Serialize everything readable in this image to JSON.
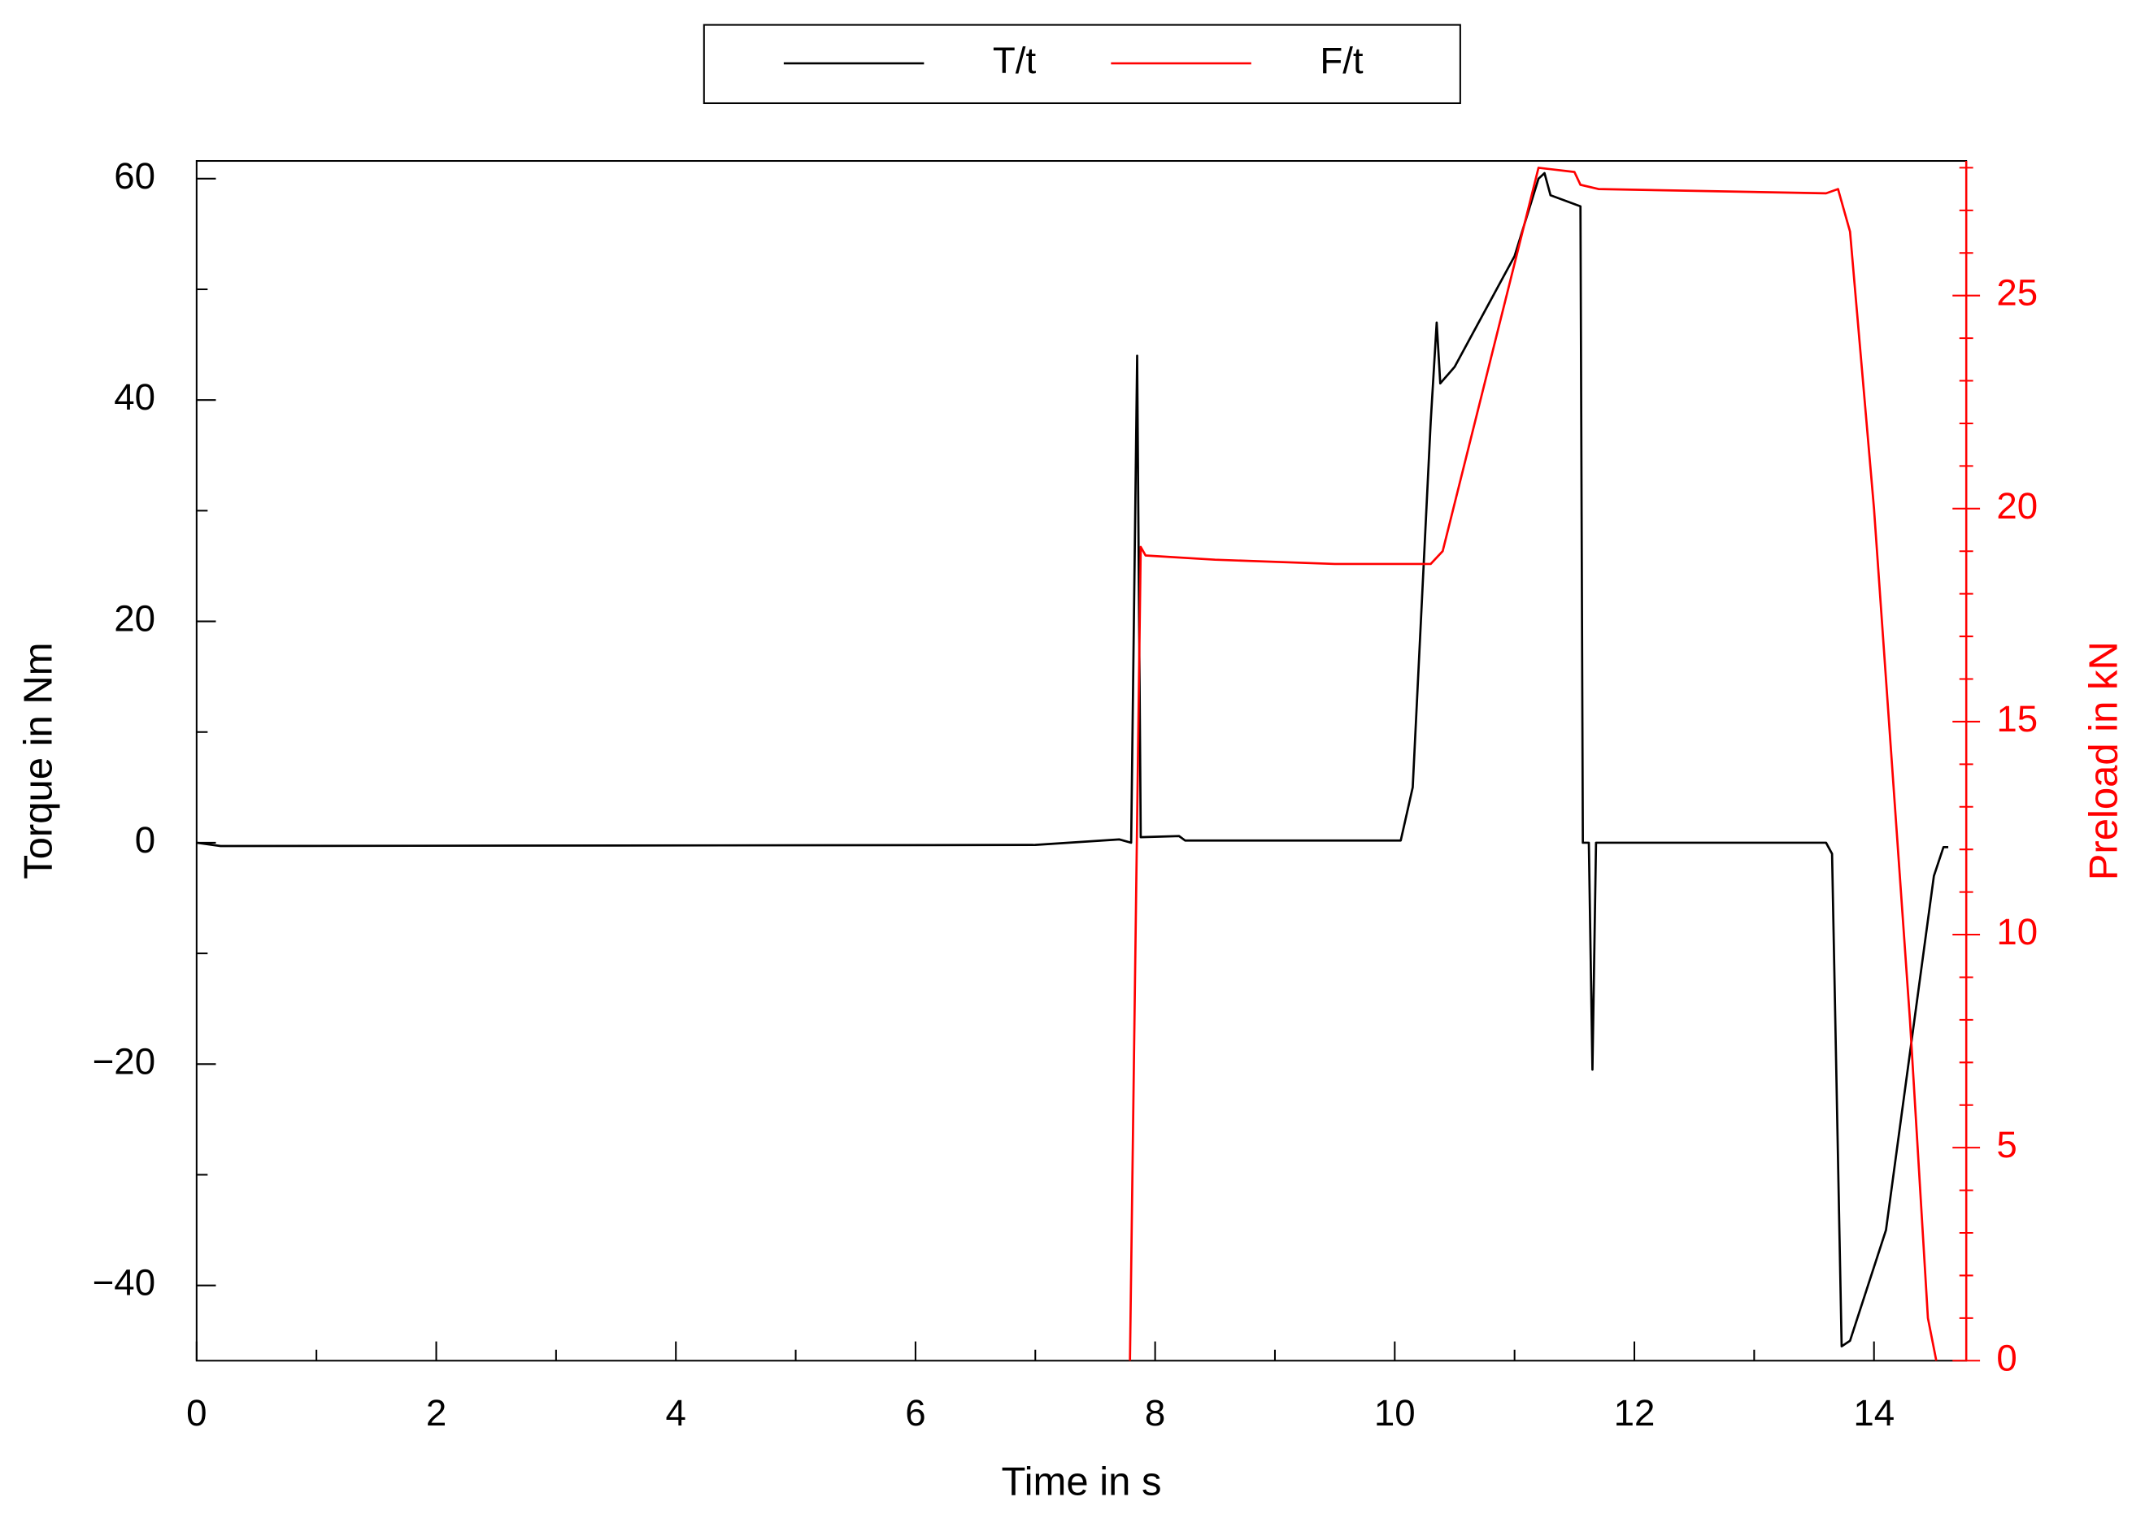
{
  "chart_data": {
    "type": "line",
    "xlabel": "Time in s",
    "ylabel": "Torque in Nm",
    "y2label": "Preload in kN",
    "legend": "top",
    "xlim": [
      0,
      14.77
    ],
    "ylim": [
      -46.8,
      61.6
    ],
    "y2lim": [
      0,
      28.16
    ],
    "xticks": [
      0,
      2,
      4,
      6,
      8,
      10,
      12,
      14
    ],
    "xminorticks": [
      1,
      3,
      5,
      7,
      9,
      11,
      13
    ],
    "yticks": [
      {
        "value": -40,
        "label": "−40"
      },
      {
        "value": -20,
        "label": "−20"
      },
      0,
      20,
      40,
      60
    ],
    "yminorticks": [
      -30,
      -10,
      10,
      30,
      50
    ],
    "y2ticks": [
      0,
      5,
      10,
      15,
      20,
      25
    ],
    "y2minorticks": [
      1,
      2,
      3,
      4,
      6,
      7,
      8,
      9,
      11,
      12,
      13,
      14,
      16,
      17,
      18,
      19,
      21,
      22,
      23,
      24,
      26,
      27,
      28
    ],
    "series": [
      {
        "name": "T/t",
        "color": "#000000",
        "x": [
          0,
          0.2,
          7.0,
          7.7,
          7.8,
          7.85,
          7.88,
          8.2,
          8.25,
          10.05,
          10.15,
          10.3,
          10.35,
          10.38,
          10.5,
          11.0,
          11.2,
          11.25,
          11.3,
          11.55,
          11.57,
          11.62,
          11.65,
          11.68,
          13.6,
          13.65,
          13.73,
          13.8,
          14.1,
          14.5,
          14.58,
          14.62
        ],
        "values": [
          0,
          -0.3,
          -0.2,
          0.3,
          0,
          44,
          0.5,
          0.6,
          0.2,
          0.2,
          5,
          38,
          47,
          41.5,
          43,
          53,
          60,
          60.5,
          58.5,
          57.5,
          0,
          0,
          -20.5,
          0,
          0,
          -1,
          -45.5,
          -45,
          -35,
          -3,
          -0.4,
          -0.4
        ]
      },
      {
        "name": "F/t",
        "color": "#ff0000",
        "axis": "y2",
        "x": [
          7.79,
          7.88,
          7.92,
          8.5,
          9.5,
          10.3,
          10.4,
          11.2,
          11.5,
          11.55,
          11.7,
          13.6,
          13.7,
          13.8,
          14.0,
          14.3,
          14.45,
          14.52
        ],
        "values": [
          0,
          19.1,
          18.9,
          18.8,
          18.7,
          18.7,
          19.0,
          28.0,
          27.9,
          27.6,
          27.5,
          27.4,
          27.5,
          26.5,
          20,
          8,
          1,
          0
        ]
      }
    ]
  }
}
